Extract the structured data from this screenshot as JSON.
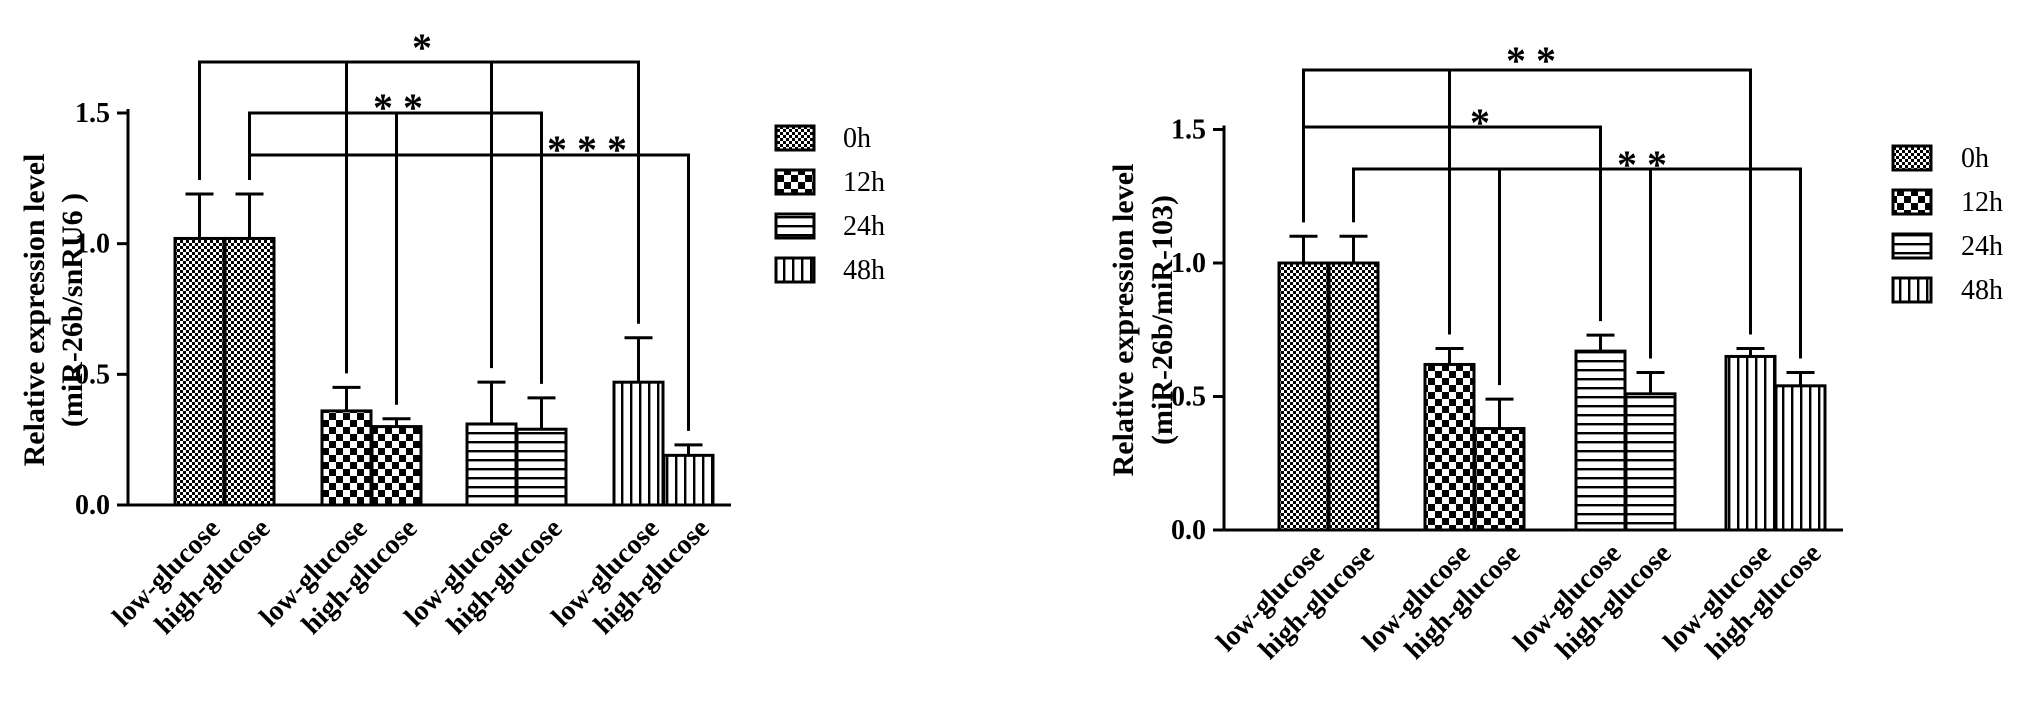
{
  "chart_data": [
    {
      "type": "bar",
      "ylabel_line1": "Relative expression level",
      "ylabel_line2": "(miR-26b/snRU6 )",
      "ylim": [
        0,
        1.5
      ],
      "yticks": [
        "0.0",
        "0.5",
        "1.0",
        "1.5"
      ],
      "ytick_values": [
        0,
        0.5,
        1.0,
        1.5
      ],
      "categories": [
        "low-glucose",
        "high-glucose",
        "low-glucose",
        "high-glucose",
        "low-glucose",
        "high-glucose",
        "low-glucose",
        "high-glucose"
      ],
      "groups": [
        "0h",
        "12h",
        "24h",
        "48h"
      ],
      "values": [
        1.02,
        1.02,
        0.36,
        0.3,
        0.31,
        0.29,
        0.47,
        0.19
      ],
      "errors": [
        0.17,
        0.17,
        0.09,
        0.03,
        0.16,
        0.12,
        0.17,
        0.04
      ],
      "patterns": [
        "check",
        "check",
        "bigcheck",
        "bigcheck",
        "hstripe",
        "hstripe",
        "vstripe",
        "vstripe"
      ],
      "legend": [
        {
          "label": "0h",
          "pattern": "check"
        },
        {
          "label": "12h",
          "pattern": "bigcheck"
        },
        {
          "label": "24h",
          "pattern": "hstripe"
        },
        {
          "label": "48h",
          "pattern": "vstripe"
        }
      ],
      "legend_position": "right",
      "significance": [
        {
          "label": "*",
          "from": 0,
          "to": [
            2,
            4,
            6
          ]
        },
        {
          "label": "* *",
          "from": 1,
          "to": [
            3,
            5
          ]
        },
        {
          "label": "* * *",
          "from": 1,
          "to": [
            7
          ]
        }
      ],
      "grid": false
    },
    {
      "type": "bar",
      "ylabel_line1": "Relative expression level",
      "ylabel_line2": "(miR-26b/miR-103)",
      "ylim": [
        0,
        1.5
      ],
      "yticks": [
        "0.0",
        "0.5",
        "1.0",
        "1.5"
      ],
      "ytick_values": [
        0,
        0.5,
        1.0,
        1.5
      ],
      "categories": [
        "low-glucose",
        "high-glucose",
        "low-glucose",
        "high-glucose",
        "low-glucose",
        "high-glucose",
        "low-glucose",
        "high-glucose"
      ],
      "groups": [
        "0h",
        "12h",
        "24h",
        "48h"
      ],
      "values": [
        1.0,
        1.0,
        0.62,
        0.38,
        0.67,
        0.51,
        0.65,
        0.54
      ],
      "errors": [
        0.1,
        0.1,
        0.06,
        0.11,
        0.06,
        0.08,
        0.03,
        0.05
      ],
      "patterns": [
        "check",
        "check",
        "bigcheck",
        "bigcheck",
        "hstripe",
        "hstripe",
        "vstripe",
        "vstripe"
      ],
      "legend": [
        {
          "label": "0h",
          "pattern": "check"
        },
        {
          "label": "12h",
          "pattern": "bigcheck"
        },
        {
          "label": "24h",
          "pattern": "hstripe"
        },
        {
          "label": "48h",
          "pattern": "vstripe"
        }
      ],
      "legend_position": "right",
      "significance": [
        {
          "label": "* *",
          "from": 0,
          "to": [
            2,
            6
          ]
        },
        {
          "label": "*",
          "from": 0,
          "to": [
            4
          ]
        },
        {
          "label": "* *",
          "from": 1,
          "to": [
            3,
            5,
            7
          ]
        }
      ],
      "grid": false
    }
  ]
}
